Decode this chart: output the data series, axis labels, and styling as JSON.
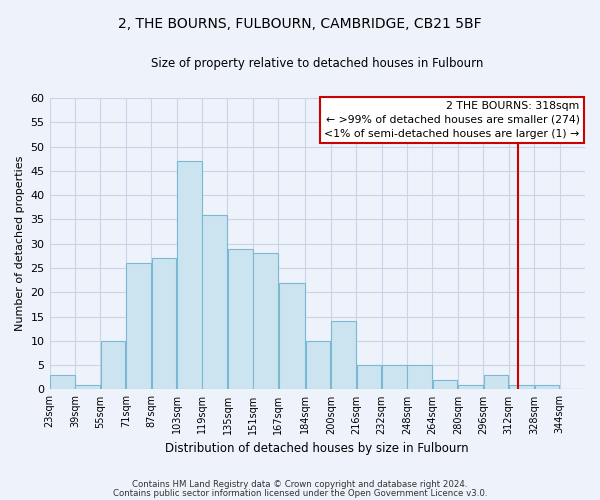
{
  "title": "2, THE BOURNS, FULBOURN, CAMBRIDGE, CB21 5BF",
  "subtitle": "Size of property relative to detached houses in Fulbourn",
  "xlabel": "Distribution of detached houses by size in Fulbourn",
  "ylabel": "Number of detached properties",
  "bin_labels": [
    "23sqm",
    "39sqm",
    "55sqm",
    "71sqm",
    "87sqm",
    "103sqm",
    "119sqm",
    "135sqm",
    "151sqm",
    "167sqm",
    "184sqm",
    "200sqm",
    "216sqm",
    "232sqm",
    "248sqm",
    "264sqm",
    "280sqm",
    "296sqm",
    "312sqm",
    "328sqm",
    "344sqm"
  ],
  "bar_values": [
    3,
    1,
    10,
    26,
    27,
    47,
    36,
    29,
    28,
    22,
    10,
    14,
    5,
    5,
    5,
    2,
    1,
    3,
    1,
    1,
    0
  ],
  "bar_color": "#cce4f0",
  "bar_edge_color": "#7ab8d4",
  "ylim": [
    0,
    60
  ],
  "yticks": [
    0,
    5,
    10,
    15,
    20,
    25,
    30,
    35,
    40,
    45,
    50,
    55,
    60
  ],
  "vline_x": 318,
  "vline_color": "#cc0000",
  "legend_title": "2 THE BOURNS: 318sqm",
  "legend_line1": "← >99% of detached houses are smaller (274)",
  "legend_line2": "<1% of semi-detached houses are larger (1) →",
  "footnote1": "Contains HM Land Registry data © Crown copyright and database right 2024.",
  "footnote2": "Contains public sector information licensed under the Open Government Licence v3.0.",
  "background_color": "#eef2fb",
  "grid_color": "#c8d4e8",
  "bin_edges": [
    23,
    39,
    55,
    71,
    87,
    103,
    119,
    135,
    151,
    167,
    184,
    200,
    216,
    232,
    248,
    264,
    280,
    296,
    312,
    328,
    344,
    360
  ]
}
